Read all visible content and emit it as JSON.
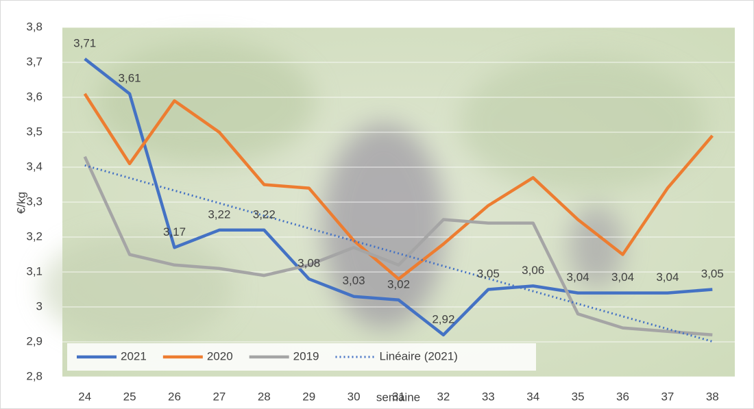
{
  "chart_data": {
    "type": "line",
    "y_label": "€/kg",
    "x_label": "semaine",
    "categories": [
      "24",
      "25",
      "26",
      "27",
      "28",
      "29",
      "30",
      "31",
      "32",
      "33",
      "34",
      "35",
      "36",
      "37",
      "38"
    ],
    "series": [
      {
        "name": "2021",
        "color": "#4472c4",
        "style": "solid",
        "values": [
          3.71,
          3.61,
          3.17,
          3.22,
          3.22,
          3.08,
          3.03,
          3.02,
          2.92,
          3.05,
          3.06,
          3.04,
          3.04,
          3.04,
          3.05
        ],
        "value_labels": [
          "3,71",
          "3,61",
          "3,17",
          "3,22",
          "3,22",
          "3,08",
          "3,03",
          "3,02",
          "2,92",
          "3,05",
          "3,06",
          "3,04",
          "3,04",
          "3,04",
          "3,05"
        ]
      },
      {
        "name": "2020",
        "color": "#ed7d31",
        "style": "solid",
        "values": [
          3.61,
          3.41,
          3.59,
          3.5,
          3.35,
          3.34,
          3.19,
          3.08,
          3.18,
          3.29,
          3.37,
          3.25,
          3.15,
          3.34,
          3.49
        ]
      },
      {
        "name": "2019",
        "color": "#a5a5a5",
        "style": "solid",
        "values": [
          3.43,
          3.15,
          3.12,
          3.11,
          3.09,
          3.12,
          3.17,
          3.12,
          3.25,
          3.24,
          3.24,
          2.98,
          2.94,
          2.93,
          2.92
        ]
      },
      {
        "name": "Linéaire (2021)",
        "color": "#4472c4",
        "style": "dotted",
        "values": [
          3.405,
          3.369,
          3.333,
          3.297,
          3.261,
          3.225,
          3.189,
          3.153,
          3.117,
          3.081,
          3.045,
          3.009,
          2.973,
          2.937,
          2.901
        ]
      }
    ],
    "ylim": [
      2.8,
      3.8
    ],
    "yticks": [
      {
        "value": 2.8,
        "label": "2,8"
      },
      {
        "value": 2.9,
        "label": "2,9"
      },
      {
        "value": 3,
        "label": "3"
      },
      {
        "value": 3.1,
        "label": "3,1"
      },
      {
        "value": 3.2,
        "label": "3,2"
      },
      {
        "value": 3.3,
        "label": "3,3"
      },
      {
        "value": 3.4,
        "label": "3,4"
      },
      {
        "value": 3.5,
        "label": "3,5"
      },
      {
        "value": 3.6,
        "label": "3,6"
      },
      {
        "value": 3.7,
        "label": "3,7"
      },
      {
        "value": 3.8,
        "label": "3,8"
      }
    ],
    "grid": true,
    "legend": "bottom-left"
  }
}
